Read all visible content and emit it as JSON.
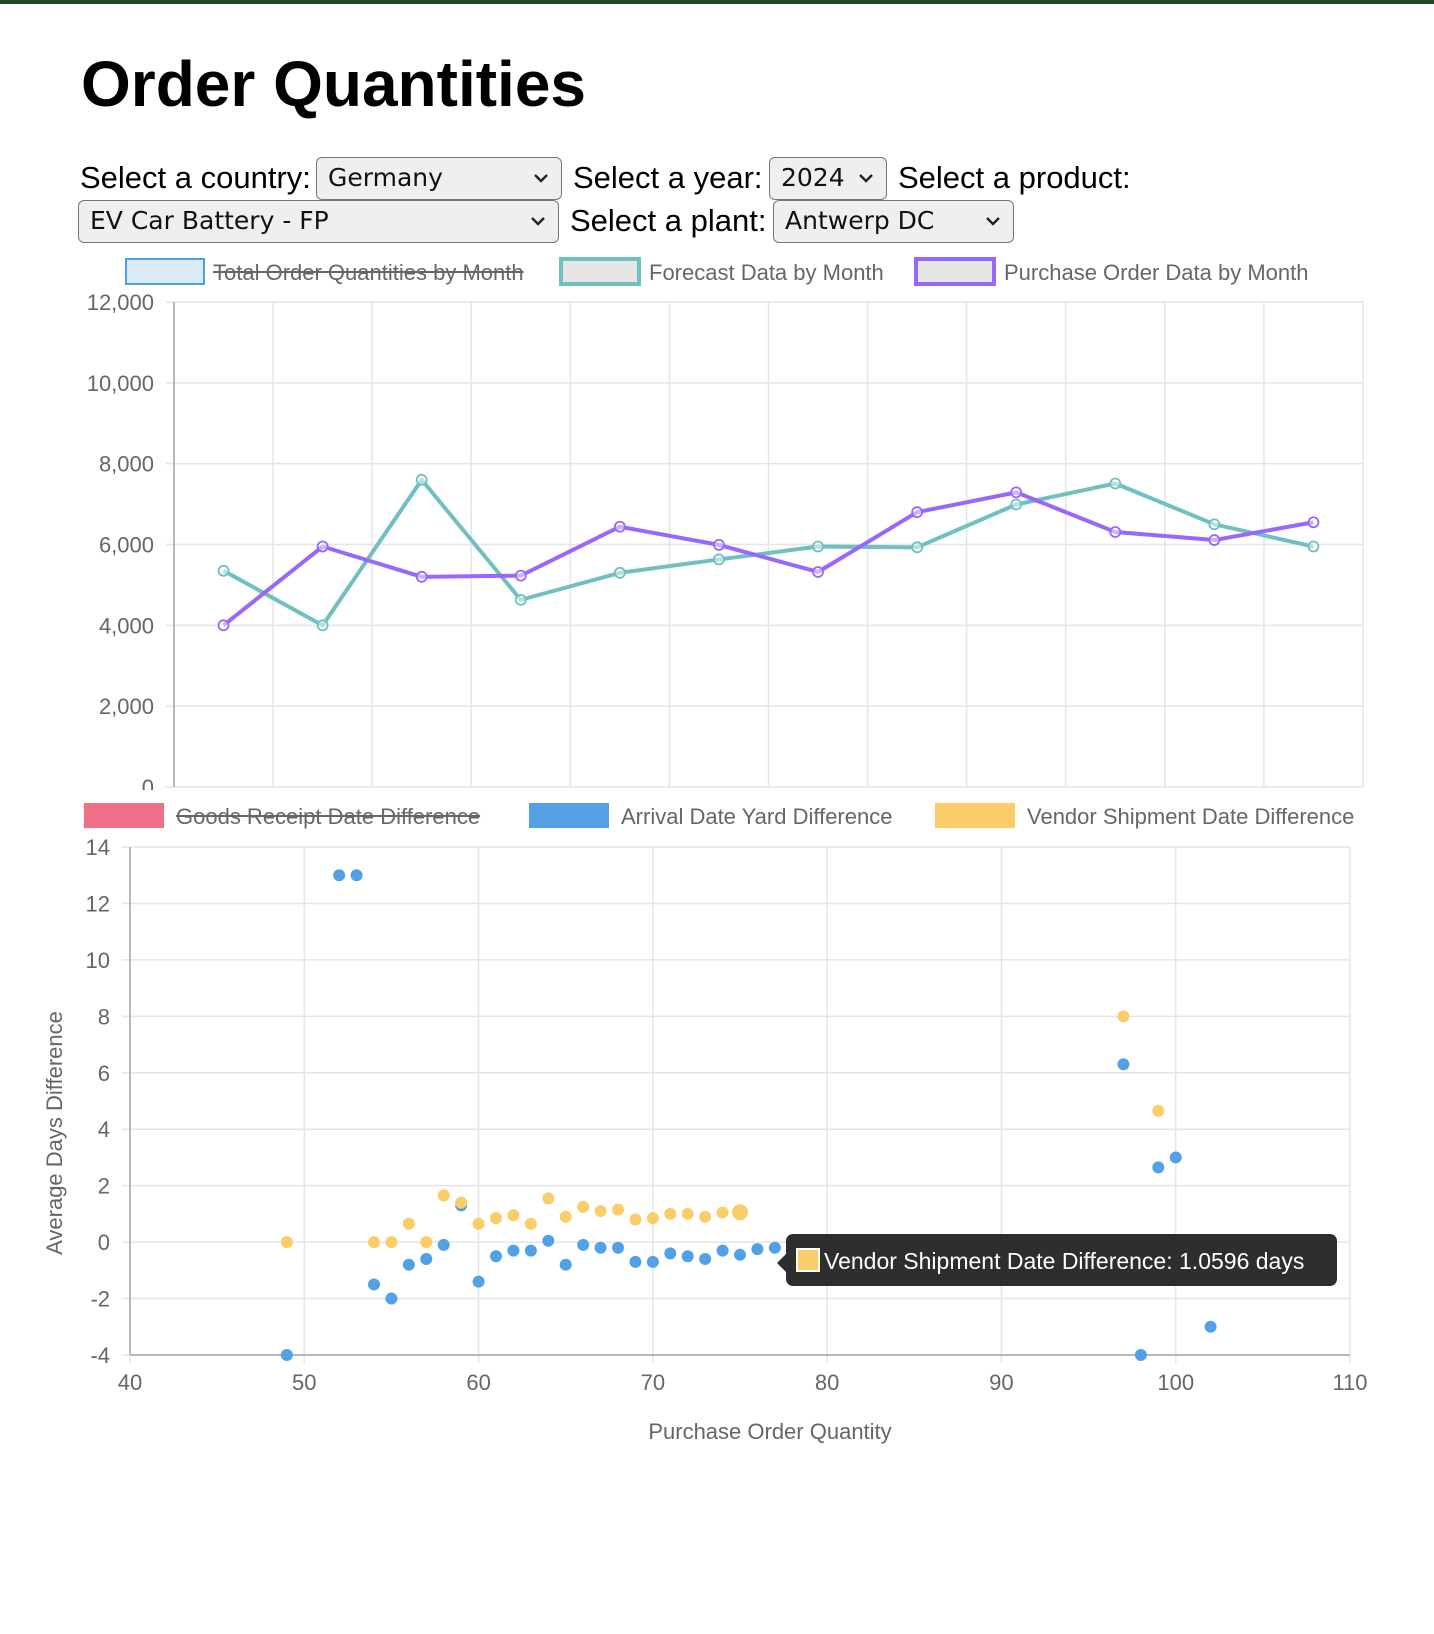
{
  "page": {
    "title": "Order Quantities"
  },
  "filters": {
    "country_label": "Select a country:",
    "country_value": "Germany",
    "year_label": "Select a year:",
    "year_value": "2024",
    "product_label": "Select a product:",
    "product_value": "EV Car Battery - FP",
    "plant_label": "Select a plant:",
    "plant_value": "Antwerp DC"
  },
  "colors": {
    "total": "#36a2eb",
    "forecast": "#6fc0c0",
    "purchase": "#9966ff",
    "goods_receipt": "#ef6f86",
    "arrival": "#52a0e6",
    "vendor": "#fbcd69",
    "grid": "#e5e5e5",
    "tooltip_bg": "#2e2e2e"
  },
  "chart_data": [
    {
      "type": "line",
      "legend": [
        {
          "name": "Total Order Quantities by Month",
          "hidden": true
        },
        {
          "name": "Forecast Data by Month",
          "hidden": false
        },
        {
          "name": "Purchase Order Data by Month",
          "hidden": false
        }
      ],
      "legend_position": "top",
      "ylim": [
        0,
        12000
      ],
      "yticks": [
        "12,000",
        "10,000",
        "8,000",
        "6,000",
        "4,000",
        "2,000",
        "0"
      ],
      "grid": true,
      "series": [
        {
          "name": "Forecast Data by Month",
          "values": [
            5350,
            4000,
            7600,
            4630,
            5300,
            5630,
            5950,
            5930,
            6990,
            7510,
            6500,
            5950
          ]
        },
        {
          "name": "Purchase Order Data by Month",
          "values": [
            4000,
            5950,
            5200,
            5230,
            6440,
            5990,
            5320,
            6800,
            7290,
            6310,
            6110,
            6550
          ]
        }
      ]
    },
    {
      "type": "scatter",
      "xlabel": "Purchase Order Quantity",
      "ylabel": "Average Days Difference",
      "xlim": [
        40,
        110
      ],
      "ylim": [
        -4,
        14
      ],
      "xticks": [
        "40",
        "50",
        "60",
        "70",
        "80",
        "90",
        "100",
        "110"
      ],
      "yticks": [
        "14",
        "12",
        "10",
        "8",
        "6",
        "4",
        "2",
        "0",
        "-2",
        "-4"
      ],
      "grid": true,
      "legend": [
        {
          "name": "Goods Receipt Date Difference",
          "hidden": true
        },
        {
          "name": "Arrival Date Yard Difference",
          "hidden": false
        },
        {
          "name": "Vendor Shipment Date Difference",
          "hidden": false
        }
      ],
      "legend_position": "top",
      "series": [
        {
          "name": "Arrival Date Yard Difference",
          "points": [
            [
              49,
              -4
            ],
            [
              52,
              13
            ],
            [
              53,
              13
            ],
            [
              54,
              -1.5
            ],
            [
              55,
              -2
            ],
            [
              56,
              -0.8
            ],
            [
              57,
              -0.6
            ],
            [
              58,
              -0.1
            ],
            [
              59,
              1.3
            ],
            [
              60,
              -1.4
            ],
            [
              61,
              -0.5
            ],
            [
              62,
              -0.3
            ],
            [
              63,
              -0.3
            ],
            [
              64,
              0.05
            ],
            [
              65,
              -0.8
            ],
            [
              66,
              -0.1
            ],
            [
              67,
              -0.2
            ],
            [
              68,
              -0.2
            ],
            [
              69,
              -0.7
            ],
            [
              70,
              -0.7
            ],
            [
              71,
              -0.4
            ],
            [
              72,
              -0.5
            ],
            [
              73,
              -0.6
            ],
            [
              74,
              -0.3
            ],
            [
              75,
              -0.45
            ],
            [
              76,
              -0.25
            ],
            [
              77,
              -0.2
            ],
            [
              78,
              -0.55
            ],
            [
              79,
              -0.55
            ],
            [
              80,
              -0.4
            ],
            [
              81,
              -0.35
            ],
            [
              82,
              -0.55
            ],
            [
              83,
              -0.45
            ],
            [
              84,
              -0.45
            ],
            [
              85,
              -0.4
            ],
            [
              86,
              -0.4
            ],
            [
              87,
              -0.4
            ],
            [
              88,
              -0.45
            ],
            [
              89,
              -0.3
            ],
            [
              90,
              -0.75
            ],
            [
              91,
              -0.35
            ],
            [
              92,
              -0.7
            ],
            [
              93,
              -0.75
            ],
            [
              94,
              -0.3
            ],
            [
              95,
              -0.25
            ],
            [
              96,
              -1.1
            ],
            [
              97,
              6.3
            ],
            [
              98,
              -4
            ],
            [
              99,
              2.65
            ],
            [
              100,
              3
            ],
            [
              102,
              -3
            ]
          ]
        },
        {
          "name": "Vendor Shipment Date Difference",
          "points": [
            [
              49,
              0
            ],
            [
              54,
              0
            ],
            [
              55,
              0
            ],
            [
              56,
              0.65
            ],
            [
              57,
              0
            ],
            [
              58,
              1.65
            ],
            [
              59,
              1.4
            ],
            [
              60,
              0.65
            ],
            [
              61,
              0.85
            ],
            [
              62,
              0.95
            ],
            [
              63,
              0.65
            ],
            [
              64,
              1.55
            ],
            [
              65,
              0.9
            ],
            [
              66,
              1.25
            ],
            [
              67,
              1.1
            ],
            [
              68,
              1.15
            ],
            [
              69,
              0.8
            ],
            [
              70,
              0.85
            ],
            [
              71,
              1.0
            ],
            [
              72,
              1.0
            ],
            [
              73,
              0.9
            ],
            [
              74,
              1.05
            ],
            [
              75,
              1.0596
            ],
            [
              96,
              0
            ],
            [
              97,
              8
            ],
            [
              98,
              0
            ],
            [
              99,
              4.65
            ],
            [
              102,
              0
            ]
          ]
        }
      ],
      "tooltip": {
        "text": "Vendor Shipment Date Difference: 1.0596 days"
      }
    }
  ]
}
